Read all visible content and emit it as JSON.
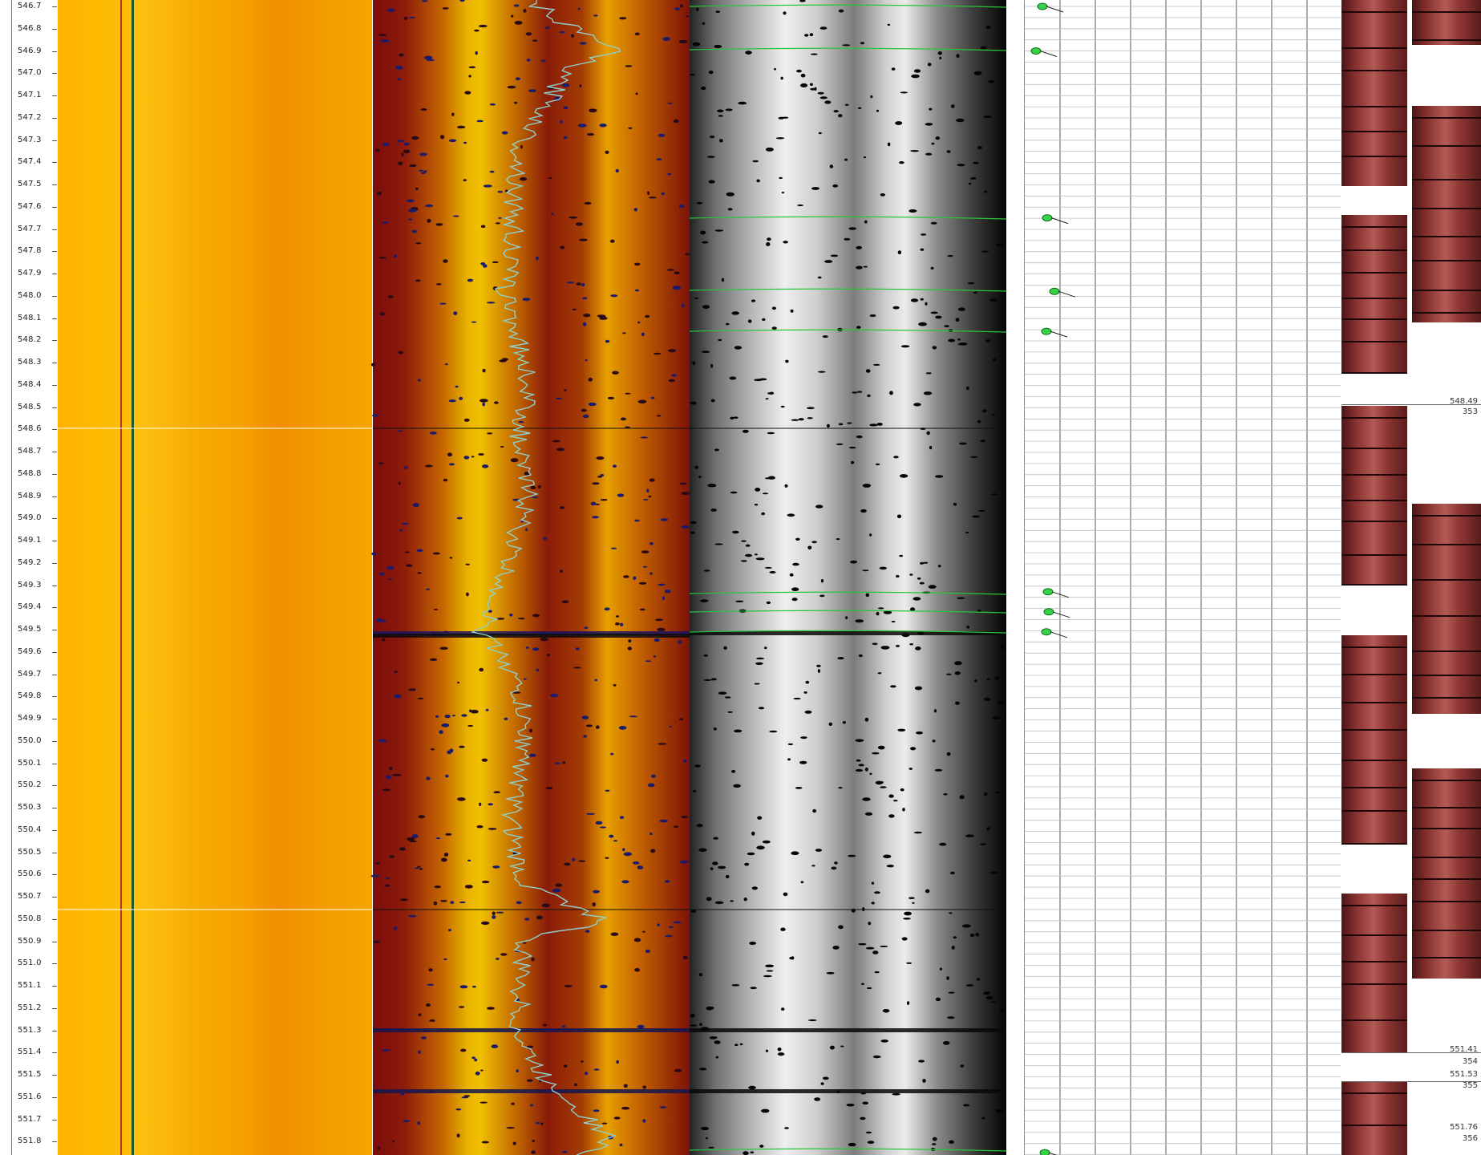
{
  "depth_axis": {
    "labels": [
      "546.7",
      "546.8",
      "546.9",
      "547.0",
      "547.1",
      "547.2",
      "547.3",
      "547.4",
      "547.5",
      "547.6",
      "547.7",
      "547.8",
      "547.9",
      "548.0",
      "548.1",
      "548.2",
      "548.3",
      "548.4",
      "548.5",
      "548.6",
      "548.7",
      "548.8",
      "548.9",
      "549.0",
      "549.1",
      "549.2",
      "549.3",
      "549.4",
      "549.5",
      "549.6",
      "549.7",
      "549.8",
      "549.9",
      "550.0",
      "550.1",
      "550.2",
      "550.3",
      "550.4",
      "550.5",
      "550.6",
      "550.7",
      "550.8",
      "550.9",
      "551.0",
      "551.1",
      "551.2",
      "551.3",
      "551.4",
      "551.5",
      "551.6",
      "551.7",
      "551.8"
    ]
  },
  "tracks": {
    "caliper": {
      "color_bg": "#f7a900",
      "curve_colors": [
        "#b03a20",
        "#1d5a2e"
      ]
    },
    "amplitude": {
      "curve_color": "#8fd0d0",
      "accent": "#e9b400"
    },
    "travel_time": {
      "fracture_color": "#27c53a"
    },
    "dip": {
      "marker_color": "#38d24a",
      "tadpole_depths": [
        546.7,
        546.9,
        547.65,
        547.98,
        548.16,
        549.33,
        549.42,
        549.51,
        551.85
      ]
    }
  },
  "core": {
    "labels": [
      {
        "text": "548.49"
      },
      {
        "text": "353"
      },
      {
        "text": "551.41"
      },
      {
        "text": "354"
      },
      {
        "text": "551.53"
      },
      {
        "text": "355"
      },
      {
        "text": "551.76"
      },
      {
        "text": "356"
      }
    ]
  }
}
